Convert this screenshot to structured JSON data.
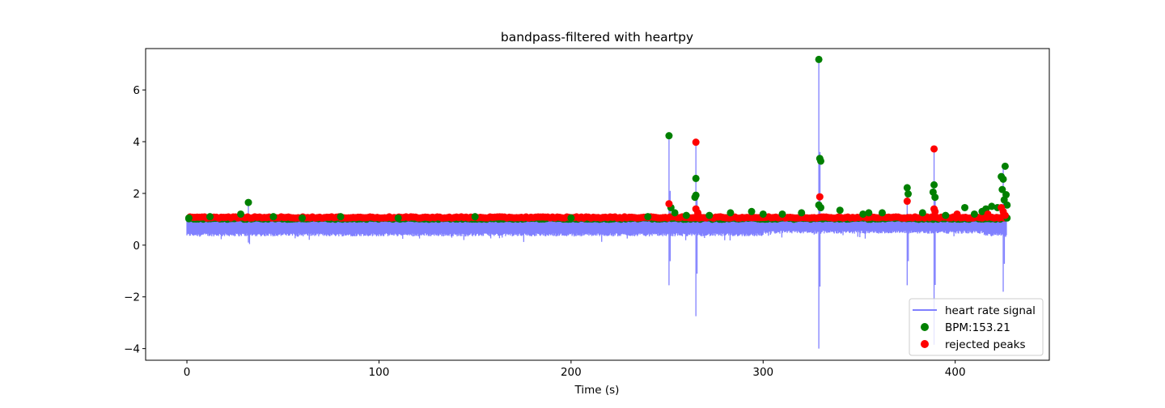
{
  "chart_data": {
    "type": "line",
    "title": "bandpass-filtered with heartpy",
    "xlabel": "Time (s)",
    "ylabel": "",
    "xlim": [
      -21.5,
      449
    ],
    "ylim": [
      -4.45,
      7.6
    ],
    "xticks": [
      0,
      100,
      200,
      300,
      400
    ],
    "yticks": [
      -4,
      -2,
      0,
      2,
      4,
      6
    ],
    "grid": false,
    "legend_position": "lower right",
    "signal": {
      "name": "heart rate signal",
      "color": "#8080ff",
      "x_range": [
        0,
        427
      ],
      "baseline_top": 1.0,
      "baseline_bottom": 0.4,
      "spikes": [
        {
          "x": 32,
          "top": 1.6,
          "bottom": 0.1
        },
        {
          "x": 251,
          "top": 4.2,
          "bottom": -1.55
        },
        {
          "x": 265,
          "top": 3.95,
          "bottom": -2.75
        },
        {
          "x": 329,
          "top": 7.2,
          "bottom": -4.0
        },
        {
          "x": 375,
          "top": 2.2,
          "bottom": -1.55
        },
        {
          "x": 389,
          "top": 3.7,
          "bottom": -3.85
        },
        {
          "x": 425,
          "top": 3.0,
          "bottom": -1.8
        }
      ]
    },
    "series": [
      {
        "name": "BPM:153.21",
        "color": "#008000",
        "points": [
          {
            "x": 1,
            "y": 1.05
          },
          {
            "x": 12,
            "y": 1.1
          },
          {
            "x": 28,
            "y": 1.2
          },
          {
            "x": 32,
            "y": 1.65
          },
          {
            "x": 45,
            "y": 1.1
          },
          {
            "x": 60,
            "y": 1.05
          },
          {
            "x": 80,
            "y": 1.1
          },
          {
            "x": 110,
            "y": 1.05
          },
          {
            "x": 150,
            "y": 1.1
          },
          {
            "x": 200,
            "y": 1.05
          },
          {
            "x": 240,
            "y": 1.1
          },
          {
            "x": 251,
            "y": 4.23
          },
          {
            "x": 252,
            "y": 1.45
          },
          {
            "x": 254,
            "y": 1.25
          },
          {
            "x": 260,
            "y": 1.15
          },
          {
            "x": 265,
            "y": 2.58
          },
          {
            "x": 265,
            "y": 1.93
          },
          {
            "x": 264.5,
            "y": 1.85
          },
          {
            "x": 272,
            "y": 1.15
          },
          {
            "x": 283,
            "y": 1.25
          },
          {
            "x": 294,
            "y": 1.3
          },
          {
            "x": 300,
            "y": 1.2
          },
          {
            "x": 310,
            "y": 1.2
          },
          {
            "x": 320,
            "y": 1.25
          },
          {
            "x": 329,
            "y": 7.18
          },
          {
            "x": 329.5,
            "y": 3.35
          },
          {
            "x": 330,
            "y": 3.25
          },
          {
            "x": 329,
            "y": 1.55
          },
          {
            "x": 330,
            "y": 1.45
          },
          {
            "x": 340,
            "y": 1.35
          },
          {
            "x": 352,
            "y": 1.2
          },
          {
            "x": 355,
            "y": 1.25
          },
          {
            "x": 362,
            "y": 1.25
          },
          {
            "x": 375,
            "y": 2.22
          },
          {
            "x": 375.5,
            "y": 1.98
          },
          {
            "x": 383,
            "y": 1.25
          },
          {
            "x": 389,
            "y": 2.33
          },
          {
            "x": 388.5,
            "y": 2.05
          },
          {
            "x": 389.5,
            "y": 1.85
          },
          {
            "x": 395,
            "y": 1.15
          },
          {
            "x": 405,
            "y": 1.45
          },
          {
            "x": 410,
            "y": 1.2
          },
          {
            "x": 414,
            "y": 1.3
          },
          {
            "x": 416,
            "y": 1.4
          },
          {
            "x": 419,
            "y": 1.5
          },
          {
            "x": 422,
            "y": 1.45
          },
          {
            "x": 424,
            "y": 2.65
          },
          {
            "x": 425,
            "y": 2.55
          },
          {
            "x": 424.5,
            "y": 2.15
          },
          {
            "x": 426,
            "y": 3.05
          },
          {
            "x": 426.5,
            "y": 1.95
          },
          {
            "x": 425.5,
            "y": 1.75
          },
          {
            "x": 427,
            "y": 1.55
          },
          {
            "x": 427,
            "y": 1.05
          }
        ]
      },
      {
        "name": "rejected peaks",
        "color": "#ff0000",
        "points": [
          {
            "x": 251,
            "y": 1.6
          },
          {
            "x": 265,
            "y": 3.98
          },
          {
            "x": 265,
            "y": 1.4
          },
          {
            "x": 266,
            "y": 1.25
          },
          {
            "x": 329.5,
            "y": 1.87
          },
          {
            "x": 375,
            "y": 1.7
          },
          {
            "x": 389,
            "y": 3.72
          },
          {
            "x": 389,
            "y": 1.4
          },
          {
            "x": 389.5,
            "y": 1.3
          },
          {
            "x": 401,
            "y": 1.2
          },
          {
            "x": 417,
            "y": 1.2
          },
          {
            "x": 424,
            "y": 1.45
          },
          {
            "x": 425,
            "y": 1.3
          },
          {
            "x": 426,
            "y": 1.15
          }
        ]
      }
    ],
    "dense_band": {
      "red_row_y": 1.07,
      "green_row_y": 1.03,
      "x_range": [
        1,
        427
      ]
    }
  }
}
